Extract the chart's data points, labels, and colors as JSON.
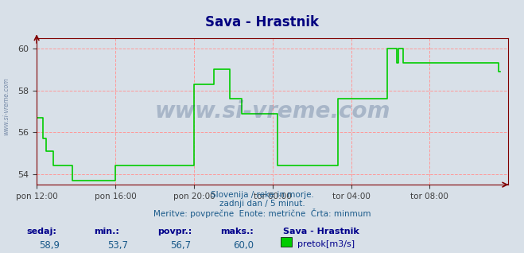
{
  "title": "Sava - Hrastnik",
  "title_color": "#000080",
  "bg_color": "#d8e0e8",
  "plot_bg_color": "#d8e0e8",
  "line_color": "#00cc00",
  "line_width": 1.2,
  "ylabel_color": "#404040",
  "grid_color": "#ff9999",
  "grid_style": "--",
  "axis_color": "#800000",
  "tick_color": "#404040",
  "watermark": "www.si-vreme.com",
  "watermark_color": "#1a3a6b",
  "watermark_alpha": 0.25,
  "subtitle1": "Slovenija / reke in morje.",
  "subtitle2": "zadnji dan / 5 minut.",
  "subtitle3": "Meritve: povprečne  Enote: metrične  Črta: minmum",
  "subtitle_color": "#1a5a8a",
  "footer_labels": [
    "sedaj:",
    "min.:",
    "povpr.:",
    "maks.:",
    "Sava - Hrastnik"
  ],
  "footer_values": [
    "58,9",
    "53,7",
    "56,7",
    "60,0"
  ],
  "footer_legend": "pretok[m3/s]",
  "footer_label_color": "#00008b",
  "footer_value_color": "#1a5a8a",
  "legend_color": "#00cc00",
  "ylim": [
    53.5,
    60.5
  ],
  "yticks": [
    54,
    56,
    58,
    60
  ],
  "xlim_hours": [
    0,
    288
  ],
  "xtick_positions": [
    0,
    48,
    96,
    144,
    192,
    240,
    288
  ],
  "xtick_labels": [
    "pon 12:00",
    "pon 16:00",
    "pon 20:00",
    "tor 00:00",
    "tor 04:00",
    "tor 08:00",
    ""
  ],
  "flow_data": [
    56.7,
    56.7,
    56.7,
    56.7,
    55.7,
    55.7,
    55.1,
    55.1,
    55.1,
    55.1,
    54.4,
    54.4,
    54.4,
    54.4,
    54.4,
    54.4,
    54.4,
    54.4,
    54.4,
    54.4,
    54.4,
    54.4,
    53.7,
    53.7,
    53.7,
    53.7,
    53.7,
    53.7,
    53.7,
    53.7,
    53.7,
    53.7,
    53.7,
    53.7,
    53.7,
    53.7,
    53.7,
    53.7,
    53.7,
    53.7,
    53.7,
    53.7,
    53.7,
    53.7,
    53.7,
    53.7,
    53.7,
    53.7,
    54.4,
    54.4,
    54.4,
    54.4,
    54.4,
    54.4,
    54.4,
    54.4,
    54.4,
    54.4,
    54.4,
    54.4,
    54.4,
    54.4,
    54.4,
    54.4,
    54.4,
    54.4,
    54.4,
    54.4,
    54.4,
    54.4,
    54.4,
    54.4,
    54.4,
    54.4,
    54.4,
    54.4,
    54.4,
    54.4,
    54.4,
    54.4,
    54.4,
    54.4,
    54.4,
    54.4,
    54.4,
    54.4,
    54.4,
    54.4,
    54.4,
    54.4,
    54.4,
    54.4,
    54.4,
    54.4,
    54.4,
    54.4,
    58.3,
    58.3,
    58.3,
    58.3,
    58.3,
    58.3,
    58.3,
    58.3,
    58.3,
    58.3,
    58.3,
    58.3,
    59.0,
    59.0,
    59.0,
    59.0,
    59.0,
    59.0,
    59.0,
    59.0,
    59.0,
    59.0,
    57.6,
    57.6,
    57.6,
    57.6,
    57.6,
    57.6,
    57.6,
    56.9,
    56.9,
    56.9,
    56.9,
    56.9,
    56.9,
    56.9,
    56.9,
    56.9,
    56.9,
    56.9,
    56.9,
    56.9,
    56.9,
    56.9,
    56.9,
    56.9,
    56.9,
    56.9,
    56.9,
    56.9,
    56.9,
    54.4,
    54.4,
    54.4,
    54.4,
    54.4,
    54.4,
    54.4,
    54.4,
    54.4,
    54.4,
    54.4,
    54.4,
    54.4,
    54.4,
    54.4,
    54.4,
    54.4,
    54.4,
    54.4,
    54.4,
    54.4,
    54.4,
    54.4,
    54.4,
    54.4,
    54.4,
    54.4,
    54.4,
    54.4,
    54.4,
    54.4,
    54.4,
    54.4,
    54.4,
    54.4,
    54.4,
    54.4,
    57.6,
    57.6,
    57.6,
    57.6,
    57.6,
    57.6,
    57.6,
    57.6,
    57.6,
    57.6,
    57.6,
    57.6,
    57.6,
    57.6,
    57.6,
    57.6,
    57.6,
    57.6,
    57.6,
    57.6,
    57.6,
    57.6,
    57.6,
    57.6,
    57.6,
    57.6,
    57.6,
    57.6,
    57.6,
    57.6,
    60.0,
    60.0,
    60.0,
    60.0,
    60.0,
    60.0,
    59.3,
    60.0,
    60.0,
    60.0,
    59.3,
    59.3,
    59.3,
    59.3,
    59.3,
    59.3,
    59.3,
    59.3,
    59.3,
    59.3,
    59.3,
    59.3,
    59.3,
    59.3,
    59.3,
    59.3,
    59.3,
    59.3,
    59.3,
    59.3,
    59.3,
    59.3,
    59.3,
    59.3,
    59.3,
    59.3,
    59.3,
    59.3,
    59.3,
    59.3,
    59.3,
    59.3,
    59.3,
    59.3,
    59.3,
    59.3,
    59.3,
    59.3,
    59.3,
    59.3,
    59.3,
    59.3,
    59.3,
    59.3,
    59.3,
    59.3,
    59.3,
    59.3,
    59.3,
    59.3,
    59.3,
    59.3,
    59.3,
    59.3,
    59.3,
    59.3,
    59.3,
    59.3,
    58.9,
    58.9
  ]
}
